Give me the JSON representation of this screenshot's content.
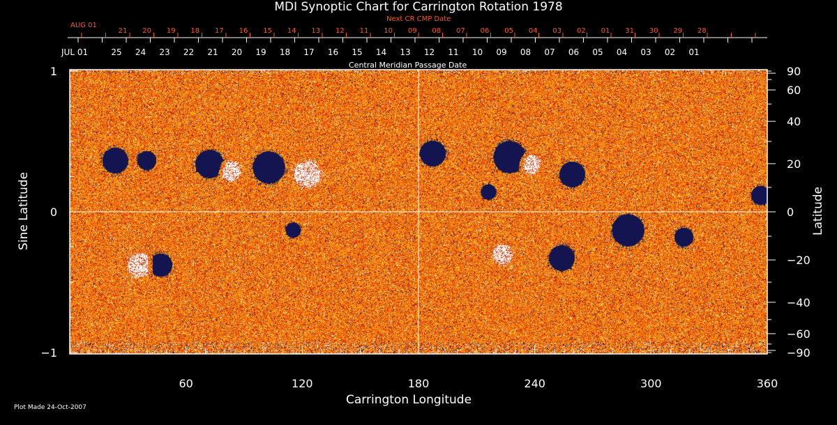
{
  "chart_data": {
    "type": "heatmap",
    "title": "MDI Synoptic Chart for Carrington Rotation 1978",
    "xlabel": "Carrington Longitude",
    "ylabel_left": "Sine Latitude",
    "ylabel_right": "Latitude",
    "xlim": [
      0,
      360
    ],
    "ylim_sine": [
      -1,
      1
    ],
    "x_ticks": [
      "60",
      "120",
      "180",
      "240",
      "300",
      "360"
    ],
    "x_tick_values": [
      60,
      120,
      180,
      240,
      300,
      360
    ],
    "left_ticks": [
      "1",
      "0",
      "−1"
    ],
    "left_tick_values": [
      1,
      0,
      -1
    ],
    "right_ticks": [
      "90",
      "60",
      "40",
      "20",
      "0",
      "−20",
      "−40",
      "−60",
      "−90"
    ],
    "right_tick_values": [
      90,
      60,
      40,
      20,
      0,
      -20,
      -40,
      -60,
      -90
    ],
    "top_axis_label": "Central Meridian Passage Date",
    "top_axis_start": "JUL 01",
    "top_axis_dates": [
      "25",
      "24",
      "23",
      "22",
      "21",
      "20",
      "19",
      "18",
      "17",
      "16",
      "15",
      "14",
      "13",
      "12",
      "11",
      "10",
      "09",
      "08",
      "07",
      "06",
      "05",
      "04",
      "03",
      "02",
      "01"
    ],
    "next_cr_label": "Next CR CMP Date",
    "next_cr_start": "AUG 01",
    "next_cr_dates": [
      "21",
      "20",
      "19",
      "18",
      "17",
      "16",
      "15",
      "14",
      "13",
      "12",
      "11",
      "10",
      "09",
      "08",
      "07",
      "06",
      "05",
      "04",
      "03",
      "02",
      "01",
      "31",
      "30",
      "29",
      "28"
    ],
    "colors": {
      "background": "#ff5500",
      "positive": "#ffffff",
      "negative": "#000040",
      "next_cr": "#ff5a1a"
    }
  },
  "footer": "Plot Made 24-Oct-2007"
}
